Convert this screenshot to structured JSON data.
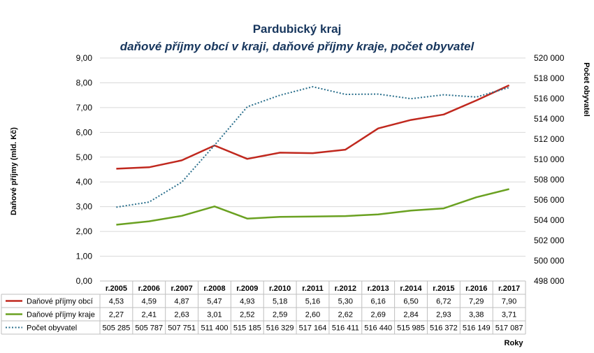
{
  "chart_data": {
    "type": "line",
    "title": "Pardubický kraj",
    "subtitle": "daňové příjmy obcí v kraji, daňové příjmy kraje, počet obyvatel",
    "ylabel_left": "Daňové příjmy (mld. Kč)",
    "ylabel_right": "Počet obyvatel",
    "xlabel": "Roky",
    "categories": [
      "r.2005",
      "r.2006",
      "r.2007",
      "r.2008",
      "r.2009",
      "r.2010",
      "r.2011",
      "r.2012",
      "r.2013",
      "r.2014",
      "r.2015",
      "r.2016",
      "r.2017"
    ],
    "ylim_left": [
      0,
      9
    ],
    "ylim_right": [
      498000,
      520000
    ],
    "yticks_left": [
      "0,00",
      "1,00",
      "2,00",
      "3,00",
      "4,00",
      "5,00",
      "6,00",
      "7,00",
      "8,00",
      "9,00"
    ],
    "yticks_right": [
      "498 000",
      "500 000",
      "502 000",
      "504 000",
      "506 000",
      "508 000",
      "510 000",
      "512 000",
      "514 000",
      "516 000",
      "518 000",
      "520 000"
    ],
    "grid": true,
    "legend": "data-table",
    "series": [
      {
        "name": "Daňové příjmy obcí",
        "axis": "left",
        "color": "#c0281e",
        "style": "solid",
        "values": [
          4.53,
          4.59,
          4.87,
          5.47,
          4.93,
          5.18,
          5.16,
          5.3,
          6.16,
          6.5,
          6.72,
          7.29,
          7.9
        ],
        "labels": [
          "4,53",
          "4,59",
          "4,87",
          "5,47",
          "4,93",
          "5,18",
          "5,16",
          "5,30",
          "6,16",
          "6,50",
          "6,72",
          "7,29",
          "7,90"
        ]
      },
      {
        "name": "Daňové příjmy kraje",
        "axis": "left",
        "color": "#6aa121",
        "style": "solid",
        "values": [
          2.27,
          2.41,
          2.63,
          3.01,
          2.52,
          2.59,
          2.6,
          2.62,
          2.69,
          2.84,
          2.93,
          3.38,
          3.71
        ],
        "labels": [
          "2,27",
          "2,41",
          "2,63",
          "3,01",
          "2,52",
          "2,59",
          "2,60",
          "2,62",
          "2,69",
          "2,84",
          "2,93",
          "3,38",
          "3,71"
        ]
      },
      {
        "name": "Počet obyvatel",
        "axis": "right",
        "color": "#2a6f8c",
        "style": "dotted",
        "values": [
          505285,
          505787,
          507751,
          511400,
          515185,
          516329,
          517164,
          516411,
          516440,
          515985,
          516372,
          516149,
          517087
        ],
        "labels": [
          "505 285",
          "505 787",
          "507 751",
          "511 400",
          "515 185",
          "516 329",
          "517 164",
          "516 411",
          "516 440",
          "515 985",
          "516 372",
          "516 149",
          "517 087"
        ]
      }
    ]
  }
}
